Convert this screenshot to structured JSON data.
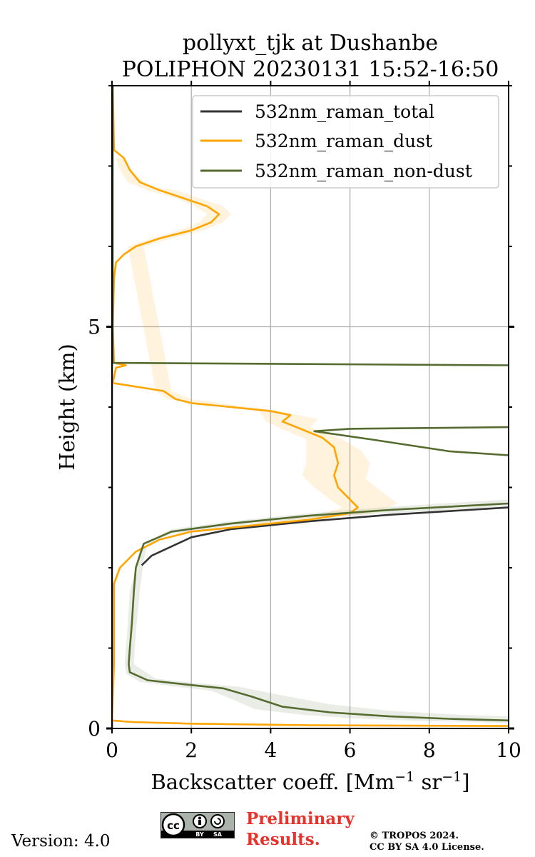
{
  "chart_data": {
    "type": "line",
    "title_line1": "pollyxt_tjk at Dushanbe",
    "title_line2": "POLIPHON 20230131 15:52-16:50",
    "xlabel_main": "Backscatter coeff. [Mm",
    "xlabel_sup1": "−1",
    "xlabel_mid": " sr",
    "xlabel_sup2": "−1",
    "xlabel_end": "]",
    "ylabel": "Height (km)",
    "xlim": [
      0,
      10
    ],
    "ylim": [
      0,
      8
    ],
    "x_ticks": [
      0,
      2,
      4,
      6,
      8,
      10
    ],
    "x_tick_labels": [
      "0",
      "2",
      "4",
      "6",
      "8",
      "10"
    ],
    "y_major_ticks": [
      0,
      5
    ],
    "y_major_labels": [
      "0",
      "5"
    ],
    "y_minor_ticks": [
      1,
      2,
      3,
      4,
      6,
      7,
      8
    ],
    "grid": true,
    "legend_position": "top-right",
    "series": [
      {
        "name": "532nm_raman_total",
        "color": "#333333",
        "points": [
          [
            0.0,
            8.0
          ],
          [
            0.0,
            0.0
          ]
        ],
        "extra_segment": [
          [
            0.75,
            2.03
          ],
          [
            1.0,
            2.15
          ],
          [
            2.0,
            2.38
          ],
          [
            3.0,
            2.48
          ],
          [
            5.0,
            2.58
          ],
          [
            7.0,
            2.66
          ],
          [
            9.0,
            2.72
          ],
          [
            10.0,
            2.75
          ]
        ]
      },
      {
        "name": "532nm_raman_dust",
        "color": "#FFA500",
        "points": [
          [
            0.02,
            8.0
          ],
          [
            0.05,
            7.2
          ],
          [
            0.3,
            7.1
          ],
          [
            0.45,
            6.95
          ],
          [
            0.7,
            6.8
          ],
          [
            1.2,
            6.7
          ],
          [
            1.8,
            6.6
          ],
          [
            2.4,
            6.5
          ],
          [
            2.7,
            6.4
          ],
          [
            2.5,
            6.3
          ],
          [
            2.0,
            6.2
          ],
          [
            1.2,
            6.1
          ],
          [
            0.6,
            6.0
          ],
          [
            0.3,
            5.9
          ],
          [
            0.1,
            5.8
          ],
          [
            0.05,
            5.6
          ],
          [
            0.02,
            5.0
          ],
          [
            0.05,
            4.55
          ],
          [
            0.35,
            4.52
          ],
          [
            0.1,
            4.49
          ],
          [
            0.02,
            4.3
          ],
          [
            1.3,
            4.2
          ],
          [
            1.6,
            4.1
          ],
          [
            2.0,
            4.05
          ],
          [
            3.0,
            4.0
          ],
          [
            4.0,
            3.95
          ],
          [
            4.5,
            3.9
          ],
          [
            4.3,
            3.82
          ],
          [
            4.8,
            3.72
          ],
          [
            5.3,
            3.62
          ],
          [
            5.6,
            3.5
          ],
          [
            5.7,
            3.3
          ],
          [
            5.6,
            3.15
          ],
          [
            5.7,
            3.0
          ],
          [
            6.0,
            2.85
          ],
          [
            6.2,
            2.75
          ],
          [
            6.0,
            2.68
          ],
          [
            5.0,
            2.6
          ],
          [
            4.0,
            2.55
          ],
          [
            3.0,
            2.5
          ],
          [
            2.0,
            2.45
          ],
          [
            1.2,
            2.35
          ],
          [
            0.6,
            2.2
          ],
          [
            0.2,
            2.0
          ],
          [
            0.05,
            1.8
          ],
          [
            0.05,
            0.8
          ],
          [
            0.0,
            0.1
          ],
          [
            0.5,
            0.08
          ],
          [
            2.0,
            0.06
          ],
          [
            5.0,
            0.04
          ],
          [
            10.0,
            0.03
          ]
        ]
      },
      {
        "name": "532nm_raman_non-dust",
        "color": "#556B2F",
        "points": [
          [
            0.02,
            8.0
          ],
          [
            0.02,
            4.55
          ],
          [
            10.0,
            4.52
          ]
        ],
        "extra_segment_1": [
          [
            10.0,
            3.75
          ],
          [
            6.0,
            3.73
          ],
          [
            5.1,
            3.7
          ],
          [
            6.5,
            3.6
          ],
          [
            8.5,
            3.45
          ],
          [
            10.0,
            3.4
          ]
        ],
        "extra_segment_2": [
          [
            10.0,
            2.8
          ],
          [
            7.0,
            2.72
          ],
          [
            5.0,
            2.65
          ],
          [
            3.0,
            2.55
          ],
          [
            1.5,
            2.45
          ],
          [
            0.8,
            2.3
          ],
          [
            0.7,
            2.15
          ],
          [
            0.6,
            2.0
          ],
          [
            0.55,
            1.7
          ],
          [
            0.5,
            1.3
          ],
          [
            0.45,
            1.0
          ],
          [
            0.42,
            0.8
          ],
          [
            0.45,
            0.7
          ],
          [
            0.9,
            0.6
          ],
          [
            1.8,
            0.55
          ],
          [
            2.8,
            0.5
          ],
          [
            3.5,
            0.4
          ],
          [
            4.3,
            0.27
          ],
          [
            5.5,
            0.2
          ],
          [
            7.0,
            0.15
          ],
          [
            8.5,
            0.12
          ],
          [
            10.0,
            0.1
          ]
        ]
      }
    ],
    "bands": [
      {
        "series": "532nm_raman_dust",
        "color": "#FFA500",
        "opacity": 0.13,
        "upper": [
          [
            0.3,
            7.1
          ],
          [
            0.5,
            6.95
          ],
          [
            0.9,
            6.75
          ],
          [
            1.6,
            6.7
          ],
          [
            2.2,
            6.6
          ],
          [
            2.8,
            6.5
          ],
          [
            3.0,
            6.4
          ],
          [
            2.8,
            6.3
          ],
          [
            2.3,
            6.2
          ],
          [
            1.5,
            6.1
          ],
          [
            0.8,
            6.0
          ],
          [
            1.5,
            4.2
          ],
          [
            2.0,
            4.1
          ],
          [
            4.2,
            3.95
          ],
          [
            5.2,
            3.85
          ],
          [
            5.0,
            3.75
          ],
          [
            5.8,
            3.6
          ],
          [
            6.3,
            3.45
          ],
          [
            6.5,
            3.3
          ],
          [
            6.4,
            3.1
          ],
          [
            6.8,
            2.95
          ],
          [
            7.2,
            2.8
          ],
          [
            6.6,
            2.68
          ],
          [
            5.2,
            2.6
          ],
          [
            3.2,
            2.5
          ]
        ],
        "lower": [
          [
            0.1,
            7.1
          ],
          [
            0.2,
            6.95
          ],
          [
            0.4,
            6.8
          ],
          [
            0.9,
            6.7
          ],
          [
            1.6,
            6.6
          ],
          [
            2.1,
            6.5
          ],
          [
            2.4,
            6.4
          ],
          [
            2.2,
            6.3
          ],
          [
            1.7,
            6.2
          ],
          [
            1.0,
            6.1
          ],
          [
            0.4,
            6.0
          ],
          [
            1.1,
            4.2
          ],
          [
            1.4,
            4.1
          ],
          [
            2.8,
            4.0
          ],
          [
            3.7,
            3.95
          ],
          [
            3.9,
            3.82
          ],
          [
            4.3,
            3.72
          ],
          [
            4.9,
            3.6
          ],
          [
            4.9,
            3.3
          ],
          [
            4.8,
            3.15
          ],
          [
            5.1,
            3.0
          ],
          [
            5.5,
            2.85
          ],
          [
            5.8,
            2.75
          ],
          [
            5.2,
            2.65
          ],
          [
            2.8,
            2.5
          ]
        ]
      },
      {
        "series": "532nm_raman_non-dust",
        "color": "#556B2F",
        "opacity": 0.12,
        "upper": [
          [
            10.0,
            2.85
          ],
          [
            7.0,
            2.76
          ],
          [
            5.0,
            2.68
          ],
          [
            3.0,
            2.58
          ],
          [
            1.5,
            2.48
          ],
          [
            0.9,
            2.32
          ],
          [
            0.8,
            2.1
          ],
          [
            0.7,
            1.7
          ],
          [
            0.6,
            1.2
          ],
          [
            0.55,
            0.8
          ],
          [
            1.1,
            0.62
          ],
          [
            2.0,
            0.57
          ],
          [
            3.2,
            0.52
          ],
          [
            4.2,
            0.42
          ],
          [
            5.5,
            0.3
          ],
          [
            7.0,
            0.22
          ],
          [
            8.8,
            0.17
          ],
          [
            10.0,
            0.15
          ]
        ],
        "lower": [
          [
            10.0,
            2.75
          ],
          [
            7.0,
            2.68
          ],
          [
            5.0,
            2.62
          ],
          [
            3.0,
            2.52
          ],
          [
            1.5,
            2.42
          ],
          [
            0.7,
            2.25
          ],
          [
            0.6,
            2.0
          ],
          [
            0.45,
            1.7
          ],
          [
            0.4,
            1.3
          ],
          [
            0.35,
            1.0
          ],
          [
            0.32,
            0.8
          ],
          [
            0.35,
            0.68
          ],
          [
            0.7,
            0.58
          ],
          [
            1.6,
            0.52
          ],
          [
            2.5,
            0.47
          ],
          [
            3.0,
            0.37
          ],
          [
            3.6,
            0.24
          ],
          [
            4.8,
            0.17
          ],
          [
            6.3,
            0.12
          ],
          [
            8.0,
            0.09
          ],
          [
            10.0,
            0.07
          ]
        ]
      }
    ]
  },
  "footer": {
    "version": "Version: 4.0",
    "cc_symbol": "cc",
    "cc_by": "BY",
    "cc_sa": "SA",
    "preliminary_line1": "Preliminary",
    "preliminary_line2": "Results.",
    "copyright_line1": "© TROPOS 2024.",
    "copyright_line2": "CC BY SA 4.0 License."
  },
  "colors": {
    "grid": "#b0b0b0",
    "preliminary": "#e8322c",
    "cc_badge_bg": "#aab2ab"
  }
}
